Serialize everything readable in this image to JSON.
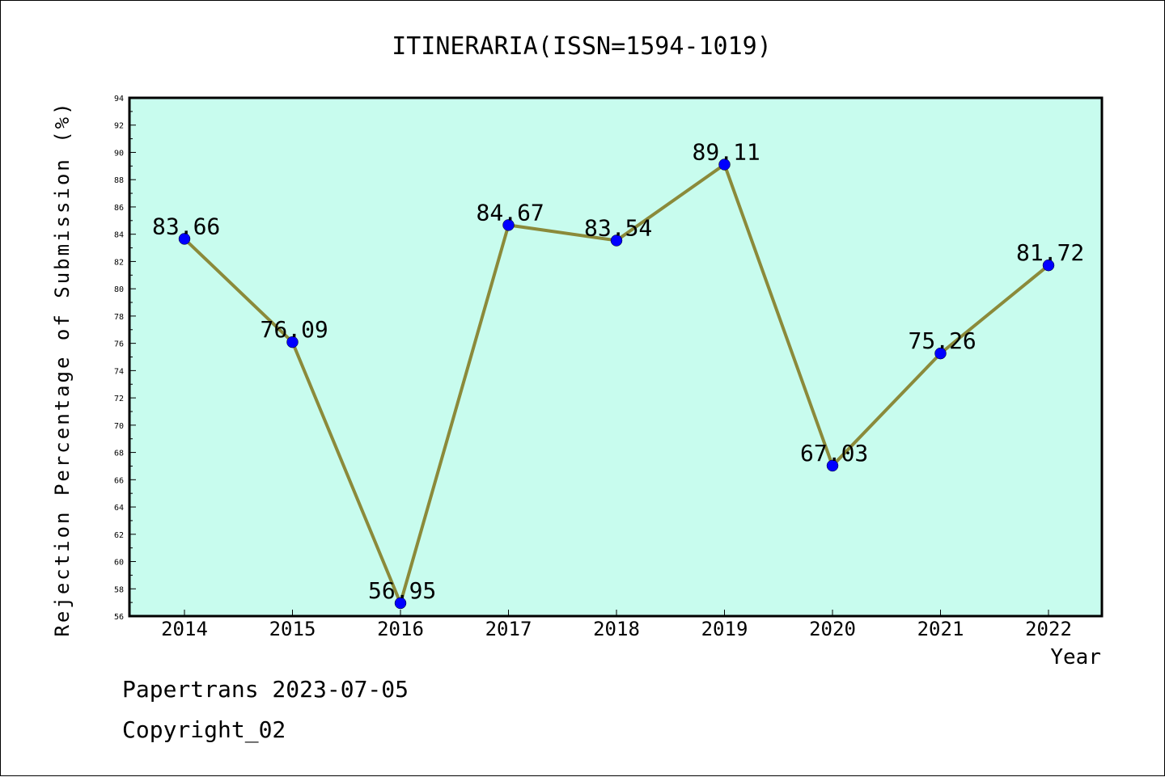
{
  "chart_data": {
    "type": "line",
    "title": "ITINERARIA(ISSN=1594-1019)",
    "xlabel": "Year",
    "ylabel": "Rejection Percentage of Submission (%)",
    "categories": [
      "2014",
      "2015",
      "2016",
      "2017",
      "2018",
      "2019",
      "2020",
      "2021",
      "2022"
    ],
    "series": [
      {
        "values": [
          83.66,
          76.09,
          56.95,
          84.67,
          83.54,
          89.11,
          67.03,
          75.26,
          81.72
        ]
      }
    ],
    "data_labels": [
      "83.66",
      "76.09",
      "56.95",
      "84.67",
      "83.54",
      "89.11",
      "67.03",
      "75.26",
      "81.72"
    ],
    "ylim": [
      56,
      94
    ],
    "y_ticks": [
      "56",
      "58",
      "60",
      "62",
      "64",
      "66",
      "68",
      "70",
      "72",
      "74",
      "76",
      "78",
      "80",
      "82",
      "84",
      "86",
      "88",
      "90",
      "92",
      "94"
    ],
    "grid": false,
    "legend": "none",
    "colors": {
      "plot_background": "#c8fcee",
      "line": "#8b8a3a",
      "marker": "#0000ff"
    }
  },
  "footer": {
    "line1": "Papertrans 2023-07-05",
    "line2": "Copyright_02"
  }
}
